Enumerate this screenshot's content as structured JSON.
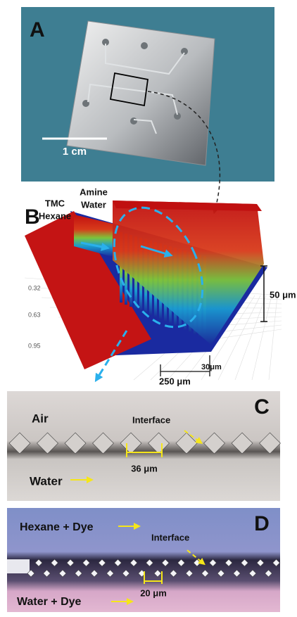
{
  "panels": {
    "a": {
      "label": "A",
      "scale_bar": "1 cm"
    },
    "b": {
      "label": "B",
      "left_fluid": [
        "TMC",
        "Hexane"
      ],
      "right_fluid": [
        "Amine",
        "Water"
      ],
      "height": "50 μm",
      "width": "250 μm",
      "gap": "30μm",
      "axis_ticks": [
        "0.32",
        "0.63",
        "0.95"
      ]
    },
    "c": {
      "label": "C",
      "top_phase": "Air",
      "interface": "Interface",
      "spacing": "36 μm",
      "bottom_phase": "Water"
    },
    "d": {
      "label": "D",
      "top_phase": "Hexane + Dye",
      "interface": "Interface",
      "spacing": "20 μm",
      "bottom_phase": "Water + Dye"
    }
  }
}
